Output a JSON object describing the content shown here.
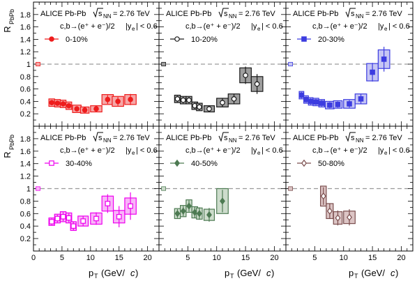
{
  "header_text": {
    "system": "ALICE Pb-Pb",
    "energy_label": "s",
    "energy_sub": "NN",
    "energy_value": "= 2.76 TeV",
    "decay": "c,b→(e⁺ + e⁻)/2",
    "rapidity": "|y",
    "rapidity_sub": "e",
    "rapidity_value": "| < 0.6"
  },
  "axes": {
    "y_title_main": "R",
    "y_title_sub": "PbPb",
    "x_title_main": "p",
    "x_title_sub": "T",
    "x_title_unit": "(GeV/",
    "x_title_c": "c",
    "x_title_close": ")",
    "y_ticks": [
      "0.2",
      "0.4",
      "0.6",
      "0.8",
      "1",
      "1.2",
      "1.4",
      "1.6",
      "1.8"
    ],
    "x_ticks_first": [
      "0",
      "5",
      "10",
      "15",
      "20"
    ],
    "x_ticks_other": [
      "5",
      "10",
      "15",
      "20"
    ]
  },
  "chart_data": [
    {
      "type": "scatter",
      "legend": "0-10%",
      "color": "#ee1c1c",
      "box_fill": "#f6a7a7",
      "marker": "filled-circle",
      "xlim": [
        0,
        22
      ],
      "ylim": [
        0,
        2
      ],
      "reference_line": 1,
      "norm_box": {
        "x": 0.8,
        "y": 1,
        "half_height": 0.03
      },
      "points": [
        {
          "x": 3.2,
          "y": 0.38,
          "stat": 0.04,
          "sys": 0.06,
          "bw": 0.5
        },
        {
          "x": 4.2,
          "y": 0.37,
          "stat": 0.04,
          "sys": 0.06,
          "bw": 0.5
        },
        {
          "x": 5.2,
          "y": 0.36,
          "stat": 0.04,
          "sys": 0.06,
          "bw": 0.5
        },
        {
          "x": 6.2,
          "y": 0.33,
          "stat": 0.04,
          "sys": 0.06,
          "bw": 0.5
        },
        {
          "x": 7.6,
          "y": 0.28,
          "stat": 0.04,
          "sys": 0.06,
          "bw": 0.75
        },
        {
          "x": 9.0,
          "y": 0.26,
          "stat": 0.04,
          "sys": 0.05,
          "bw": 0.75
        },
        {
          "x": 11.0,
          "y": 0.28,
          "stat": 0.05,
          "sys": 0.05,
          "bw": 1.0
        },
        {
          "x": 13.0,
          "y": 0.43,
          "stat": 0.07,
          "sys": 0.08,
          "bw": 1.0
        },
        {
          "x": 14.8,
          "y": 0.4,
          "stat": 0.07,
          "sys": 0.08,
          "bw": 1.0
        },
        {
          "x": 17.0,
          "y": 0.43,
          "stat": 0.09,
          "sys": 0.08,
          "bw": 1.0
        }
      ]
    },
    {
      "type": "scatter",
      "legend": "10-20%",
      "color": "#1a1a1a",
      "box_fill": "#9e9e9e",
      "marker": "open-circle",
      "xlim": [
        0,
        22
      ],
      "ylim": [
        0,
        2
      ],
      "reference_line": 1,
      "norm_box": {
        "x": 0.8,
        "y": 1,
        "half_height": 0.03
      },
      "points": [
        {
          "x": 3.2,
          "y": 0.44,
          "stat": 0.05,
          "sys": 0.06,
          "bw": 0.5
        },
        {
          "x": 4.2,
          "y": 0.42,
          "stat": 0.05,
          "sys": 0.06,
          "bw": 0.5
        },
        {
          "x": 5.2,
          "y": 0.42,
          "stat": 0.05,
          "sys": 0.06,
          "bw": 0.5
        },
        {
          "x": 6.2,
          "y": 0.33,
          "stat": 0.05,
          "sys": 0.06,
          "bw": 0.5
        },
        {
          "x": 7.0,
          "y": 0.31,
          "stat": 0.05,
          "sys": 0.06,
          "bw": 0.5
        },
        {
          "x": 8.7,
          "y": 0.28,
          "stat": 0.05,
          "sys": 0.05,
          "bw": 0.9
        },
        {
          "x": 11.0,
          "y": 0.38,
          "stat": 0.07,
          "sys": 0.07,
          "bw": 1.0
        },
        {
          "x": 13.0,
          "y": 0.44,
          "stat": 0.08,
          "sys": 0.08,
          "bw": 1.0
        },
        {
          "x": 15.0,
          "y": 0.82,
          "stat": 0.14,
          "sys": 0.12,
          "bw": 1.0
        },
        {
          "x": 17.0,
          "y": 0.68,
          "stat": 0.16,
          "sys": 0.12,
          "bw": 1.0
        }
      ]
    },
    {
      "type": "scatter",
      "legend": "20-30%",
      "color": "#3c3ce0",
      "box_fill": "#c6c6f4",
      "marker": "filled-square",
      "xlim": [
        0,
        22
      ],
      "ylim": [
        0,
        2
      ],
      "reference_line": 1,
      "norm_box": {
        "x": 0.8,
        "y": 1,
        "half_height": 0.03
      },
      "points": [
        {
          "x": 2.7,
          "y": 0.5,
          "stat": 0.05,
          "sys": 0.06,
          "bw": 0.4
        },
        {
          "x": 3.5,
          "y": 0.43,
          "stat": 0.05,
          "sys": 0.06,
          "bw": 0.4
        },
        {
          "x": 4.3,
          "y": 0.4,
          "stat": 0.05,
          "sys": 0.06,
          "bw": 0.4
        },
        {
          "x": 5.2,
          "y": 0.39,
          "stat": 0.05,
          "sys": 0.06,
          "bw": 0.5
        },
        {
          "x": 6.2,
          "y": 0.37,
          "stat": 0.05,
          "sys": 0.06,
          "bw": 0.5
        },
        {
          "x": 7.6,
          "y": 0.34,
          "stat": 0.05,
          "sys": 0.06,
          "bw": 0.75
        },
        {
          "x": 9.0,
          "y": 0.35,
          "stat": 0.05,
          "sys": 0.06,
          "bw": 0.75
        },
        {
          "x": 11.0,
          "y": 0.36,
          "stat": 0.06,
          "sys": 0.07,
          "bw": 1.0
        },
        {
          "x": 13.0,
          "y": 0.44,
          "stat": 0.08,
          "sys": 0.08,
          "bw": 1.0
        },
        {
          "x": 15.0,
          "y": 0.87,
          "stat": 0.15,
          "sys": 0.14,
          "bw": 1.0
        },
        {
          "x": 17.0,
          "y": 1.08,
          "stat": 0.2,
          "sys": 0.15,
          "bw": 1.0
        }
      ]
    },
    {
      "type": "scatter",
      "legend": "30-40%",
      "color": "#ee00ee",
      "box_fill": "#f8b5f8",
      "marker": "open-square",
      "xlim": [
        0,
        22
      ],
      "ylim": [
        0,
        2
      ],
      "reference_line": 1,
      "norm_box": {
        "x": 0.8,
        "y": 1,
        "half_height": 0.03
      },
      "points": [
        {
          "x": 3.2,
          "y": 0.47,
          "stat": 0.05,
          "sys": 0.06,
          "bw": 0.5
        },
        {
          "x": 4.2,
          "y": 0.52,
          "stat": 0.06,
          "sys": 0.07,
          "bw": 0.5
        },
        {
          "x": 5.2,
          "y": 0.55,
          "stat": 0.07,
          "sys": 0.08,
          "bw": 0.5
        },
        {
          "x": 6.2,
          "y": 0.53,
          "stat": 0.07,
          "sys": 0.08,
          "bw": 0.5
        },
        {
          "x": 7.0,
          "y": 0.4,
          "stat": 0.07,
          "sys": 0.07,
          "bw": 0.5
        },
        {
          "x": 8.7,
          "y": 0.48,
          "stat": 0.08,
          "sys": 0.08,
          "bw": 0.9
        },
        {
          "x": 11.0,
          "y": 0.52,
          "stat": 0.1,
          "sys": 0.09,
          "bw": 1.0
        },
        {
          "x": 13.0,
          "y": 0.76,
          "stat": 0.15,
          "sys": 0.12,
          "bw": 1.0
        },
        {
          "x": 15.0,
          "y": 0.55,
          "stat": 0.17,
          "sys": 0.1,
          "bw": 1.0
        },
        {
          "x": 17.0,
          "y": 0.72,
          "stat": 0.22,
          "sys": 0.13,
          "bw": 1.0
        }
      ]
    },
    {
      "type": "scatter",
      "legend": "40-50%",
      "color": "#4d7a52",
      "box_fill": "#cddccc",
      "marker": "filled-diamond",
      "xlim": [
        0,
        22
      ],
      "ylim": [
        0,
        2
      ],
      "reference_line": 1,
      "norm_box": {
        "x": 0.8,
        "y": 1,
        "half_height": 0.03
      },
      "points": [
        {
          "x": 3.2,
          "y": 0.6,
          "stat": 0.07,
          "sys": 0.08,
          "bw": 0.5
        },
        {
          "x": 4.2,
          "y": 0.64,
          "stat": 0.08,
          "sys": 0.09,
          "bw": 0.5
        },
        {
          "x": 5.2,
          "y": 0.72,
          "stat": 0.09,
          "sys": 0.1,
          "bw": 0.5
        },
        {
          "x": 6.2,
          "y": 0.62,
          "stat": 0.09,
          "sys": 0.09,
          "bw": 0.5
        },
        {
          "x": 7.0,
          "y": 0.6,
          "stat": 0.1,
          "sys": 0.09,
          "bw": 0.5
        },
        {
          "x": 8.7,
          "y": 0.58,
          "stat": 0.11,
          "sys": 0.09,
          "bw": 0.9
        },
        {
          "x": 11.0,
          "y": 0.8,
          "stat": 0.18,
          "sys": 0.2,
          "bw": 1.0
        }
      ]
    },
    {
      "type": "scatter",
      "legend": "50-80%",
      "color": "#7a4d4d",
      "box_fill": "#dcc5c5",
      "marker": "open-diamond",
      "xlim": [
        0,
        22
      ],
      "ylim": [
        0,
        2
      ],
      "reference_line": 1,
      "norm_box": {
        "x": 0.8,
        "y": 1,
        "half_height": 0.03
      },
      "points": [
        {
          "x": 6.5,
          "y": 0.88,
          "stat": 0.14,
          "sys": 0.16,
          "bw": 0.5
        },
        {
          "x": 7.6,
          "y": 0.64,
          "stat": 0.12,
          "sys": 0.12,
          "bw": 0.6
        },
        {
          "x": 9.0,
          "y": 0.53,
          "stat": 0.12,
          "sys": 0.1,
          "bw": 0.75
        },
        {
          "x": 11.0,
          "y": 0.54,
          "stat": 0.13,
          "sys": 0.1,
          "bw": 1.0
        }
      ]
    }
  ]
}
